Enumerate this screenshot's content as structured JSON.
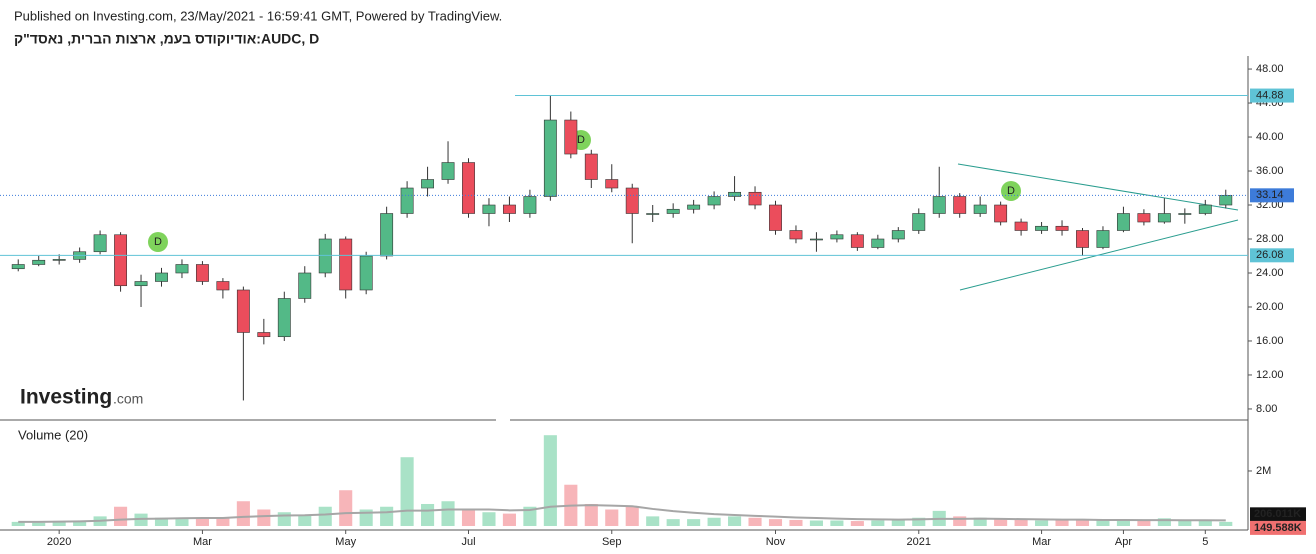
{
  "chart_data": {
    "type": "candlestick",
    "published": "Published on Investing.com, 23/May/2021 - 16:59:41 GMT, Powered by TradingView.",
    "title": "אודיוקודס בעמ, ארצות הברית, נאסד\"ק:AUDC, D",
    "logo": "Investing",
    "logo_suffix": ".com",
    "volume_title": "Volume (20)",
    "event_label": "D",
    "up_color": "#53b987",
    "down_color": "#eb4d5c",
    "volume_up_color": "#a9e2c7",
    "volume_down_color": "#f7b5b9",
    "ma_color": "#a6a6a6",
    "categories": [
      null,
      null,
      "2020",
      null,
      null,
      null,
      null,
      null,
      null,
      "Mar",
      null,
      null,
      null,
      null,
      null,
      null,
      "May",
      null,
      null,
      null,
      null,
      null,
      "Jul",
      null,
      null,
      null,
      null,
      null,
      null,
      "Sep",
      null,
      null,
      null,
      null,
      null,
      null,
      null,
      "Nov",
      null,
      null,
      null,
      null,
      null,
      null,
      "2021",
      null,
      null,
      null,
      null,
      null,
      "Mar",
      null,
      null,
      null,
      "Apr",
      null,
      null,
      null,
      "5",
      null
    ],
    "ohlc": [
      [
        24.5,
        25.6,
        24.2,
        25
      ],
      [
        25,
        26,
        24.8,
        25.5
      ],
      [
        25.5,
        26.2,
        25,
        25.6
      ],
      [
        25.6,
        27,
        25.2,
        26.5
      ],
      [
        26.5,
        29,
        26.2,
        28.5
      ],
      [
        28.5,
        28.8,
        21.8,
        22.5
      ],
      [
        22.5,
        23.8,
        20,
        23
      ],
      [
        23,
        24.6,
        22.4,
        24
      ],
      [
        24,
        25.6,
        23.4,
        25
      ],
      [
        25,
        25.4,
        22.6,
        23
      ],
      [
        23,
        23.4,
        21,
        22
      ],
      [
        22,
        22.4,
        9,
        17
      ],
      [
        17,
        18.6,
        15.6,
        16.5
      ],
      [
        16.5,
        21.8,
        16,
        21
      ],
      [
        21,
        24.8,
        20.5,
        24
      ],
      [
        24,
        28.6,
        23.5,
        28
      ],
      [
        28,
        28.3,
        21,
        22
      ],
      [
        22,
        26.5,
        21.5,
        26
      ],
      [
        26,
        31.8,
        25.6,
        31
      ],
      [
        31,
        34.8,
        30.5,
        34
      ],
      [
        34,
        36.5,
        33,
        35
      ],
      [
        35,
        39.5,
        34.5,
        37
      ],
      [
        37,
        37.5,
        30.5,
        31
      ],
      [
        31,
        32.8,
        29.5,
        32
      ],
      [
        32,
        33,
        30,
        31
      ],
      [
        31,
        33.8,
        30.5,
        33
      ],
      [
        33,
        44.88,
        32.5,
        42
      ],
      [
        42,
        43,
        37.5,
        38
      ],
      [
        38,
        38.5,
        34,
        35
      ],
      [
        35,
        36.8,
        33.5,
        34
      ],
      [
        34,
        34.5,
        27.5,
        31
      ],
      [
        31,
        32,
        30,
        31
      ],
      [
        31,
        32.2,
        30.5,
        31.5
      ],
      [
        31.5,
        32.6,
        31,
        32
      ],
      [
        32,
        33.6,
        31.5,
        33
      ],
      [
        33,
        35.4,
        32.5,
        33.5
      ],
      [
        33.5,
        34.2,
        31.5,
        32
      ],
      [
        32,
        32.5,
        28.5,
        29
      ],
      [
        29,
        29.6,
        27.5,
        28
      ],
      [
        28,
        28.8,
        26.5,
        28
      ],
      [
        28,
        29,
        27.6,
        28.5
      ],
      [
        28.5,
        28.8,
        26.6,
        27
      ],
      [
        27,
        28.5,
        26.8,
        28
      ],
      [
        28,
        29.4,
        27.6,
        29
      ],
      [
        29,
        31.6,
        28.6,
        31
      ],
      [
        31,
        36.5,
        30.5,
        33
      ],
      [
        33,
        33.4,
        30.5,
        31
      ],
      [
        31,
        33,
        30.6,
        32
      ],
      [
        32,
        32.4,
        29.6,
        30
      ],
      [
        30,
        30.4,
        28.4,
        29
      ],
      [
        29,
        30,
        28.6,
        29.5
      ],
      [
        29.5,
        30.2,
        28.4,
        29
      ],
      [
        29,
        29.3,
        26,
        27
      ],
      [
        27,
        29.5,
        26.8,
        29
      ],
      [
        29,
        31.8,
        28.8,
        31
      ],
      [
        31,
        31.5,
        29.6,
        30
      ],
      [
        30,
        32.8,
        29.8,
        31
      ],
      [
        31,
        31.6,
        29.8,
        31
      ],
      [
        31,
        32.6,
        30.8,
        32
      ],
      [
        32,
        33.8,
        31.6,
        33.14
      ]
    ],
    "volume": [
      150000,
      120000,
      180000,
      200000,
      350000,
      700000,
      450000,
      300000,
      250000,
      300000,
      280000,
      900000,
      600000,
      500000,
      400000,
      700000,
      1300000,
      600000,
      700000,
      2500000,
      800000,
      900000,
      600000,
      500000,
      450000,
      700000,
      3300000,
      1500000,
      800000,
      600000,
      700000,
      350000,
      250000,
      250000,
      300000,
      350000,
      300000,
      250000,
      220000,
      200000,
      200000,
      180000,
      200000,
      220000,
      300000,
      550000,
      350000,
      300000,
      250000,
      220000,
      200000,
      200000,
      250000,
      220000,
      250000,
      200000,
      280000,
      220000,
      200000,
      149588
    ],
    "volume_ma": [
      150000,
      150000,
      160000,
      170000,
      190000,
      230000,
      260000,
      270000,
      280000,
      290000,
      290000,
      330000,
      360000,
      380000,
      390000,
      420000,
      470000,
      480000,
      500000,
      560000,
      560000,
      600000,
      600000,
      600000,
      570000,
      580000,
      700000,
      740000,
      760000,
      740000,
      720000,
      620000,
      540000,
      480000,
      430000,
      400000,
      370000,
      340000,
      310000,
      290000,
      270000,
      250000,
      240000,
      230000,
      240000,
      260000,
      260000,
      270000,
      260000,
      250000,
      240000,
      230000,
      230000,
      220000,
      220000,
      215000,
      215000,
      210000,
      210000,
      206011
    ],
    "last_volume": {
      "value": 149588,
      "label": "149.588K"
    },
    "last_volume_ma": {
      "value": 206011,
      "label": "206.011K"
    },
    "levels": [
      44.88,
      26.08
    ],
    "level_color": "#5fc3d6",
    "last_price": 33.14,
    "last_price_color": "#3d7bd9",
    "ylim": [
      6.7,
      49.3
    ],
    "yticks": [
      {
        "value": 8,
        "label": "8.00"
      },
      {
        "value": 12,
        "label": "12.00"
      },
      {
        "value": 16,
        "label": "16.00"
      },
      {
        "value": 20,
        "label": "20.00"
      },
      {
        "value": 24,
        "label": "24.00"
      },
      {
        "value": 28,
        "label": "28.00"
      },
      {
        "value": 32,
        "label": "32.00"
      },
      {
        "value": 36,
        "label": "36.00"
      },
      {
        "value": 40,
        "label": "40.00"
      },
      {
        "value": 44,
        "label": "44.00"
      },
      {
        "value": 48,
        "label": "48.00"
      }
    ],
    "vlim": [
      0,
      3780000
    ],
    "vticks": [
      {
        "value": 2000000,
        "label": "2M"
      }
    ]
  }
}
